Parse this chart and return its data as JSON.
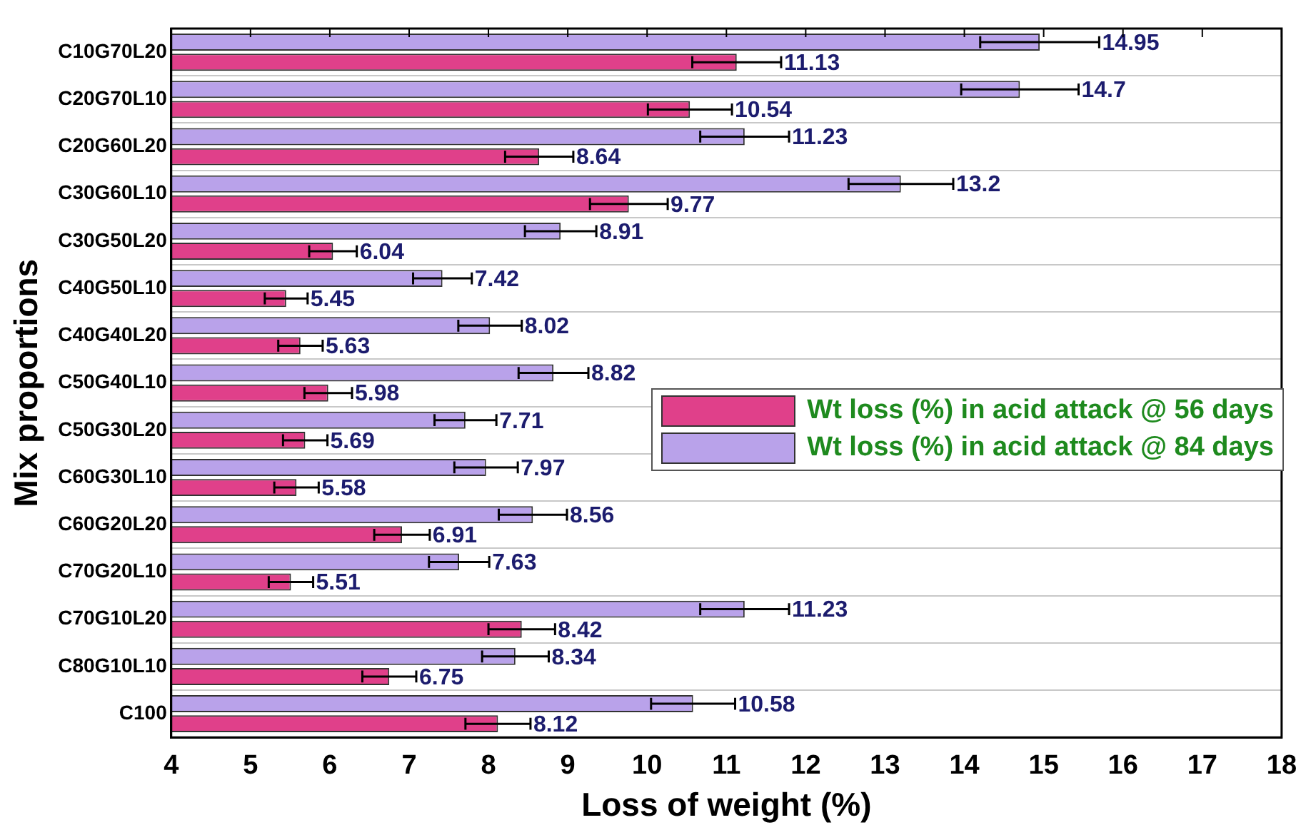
{
  "chart_data": {
    "type": "bar",
    "orientation": "horizontal",
    "xlabel": "Loss of weight (%)",
    "ylabel": "Mix proportions",
    "categories": [
      "C10G70L20",
      "C20G70L10",
      "C20G60L20",
      "C30G60L10",
      "C30G50L20",
      "C40G50L10",
      "C40G40L20",
      "C50G40L10",
      "C50G30L20",
      "C60G30L10",
      "C60G20L20",
      "C70G20L10",
      "C70G10L20",
      "C80G10L10",
      "C100"
    ],
    "series": [
      {
        "name": "Wt loss (%) in acid attack @ 56 days",
        "color": "#e0408a",
        "values": [
          11.13,
          10.54,
          8.64,
          9.77,
          6.04,
          5.45,
          5.63,
          5.98,
          5.69,
          5.58,
          6.91,
          5.51,
          8.42,
          6.75,
          8.12
        ],
        "errors": [
          0.56,
          0.53,
          0.43,
          0.49,
          0.3,
          0.27,
          0.28,
          0.3,
          0.28,
          0.28,
          0.35,
          0.28,
          0.42,
          0.34,
          0.41
        ]
      },
      {
        "name": "Wt loss (%) in acid attack @ 84 days",
        "color": "#b9a2ea",
        "values": [
          14.95,
          14.7,
          11.23,
          13.2,
          8.91,
          7.42,
          8.02,
          8.82,
          7.71,
          7.97,
          8.56,
          7.63,
          11.23,
          8.34,
          10.58
        ],
        "errors": [
          0.75,
          0.74,
          0.56,
          0.66,
          0.45,
          0.37,
          0.4,
          0.44,
          0.39,
          0.4,
          0.43,
          0.38,
          0.56,
          0.42,
          0.53
        ]
      }
    ],
    "xlim": [
      4,
      18
    ],
    "xticks": [
      4,
      5,
      6,
      7,
      8,
      9,
      10,
      11,
      12,
      13,
      14,
      15,
      16,
      17,
      18
    ],
    "data_labels": true,
    "grid": "y",
    "legend": "right"
  }
}
